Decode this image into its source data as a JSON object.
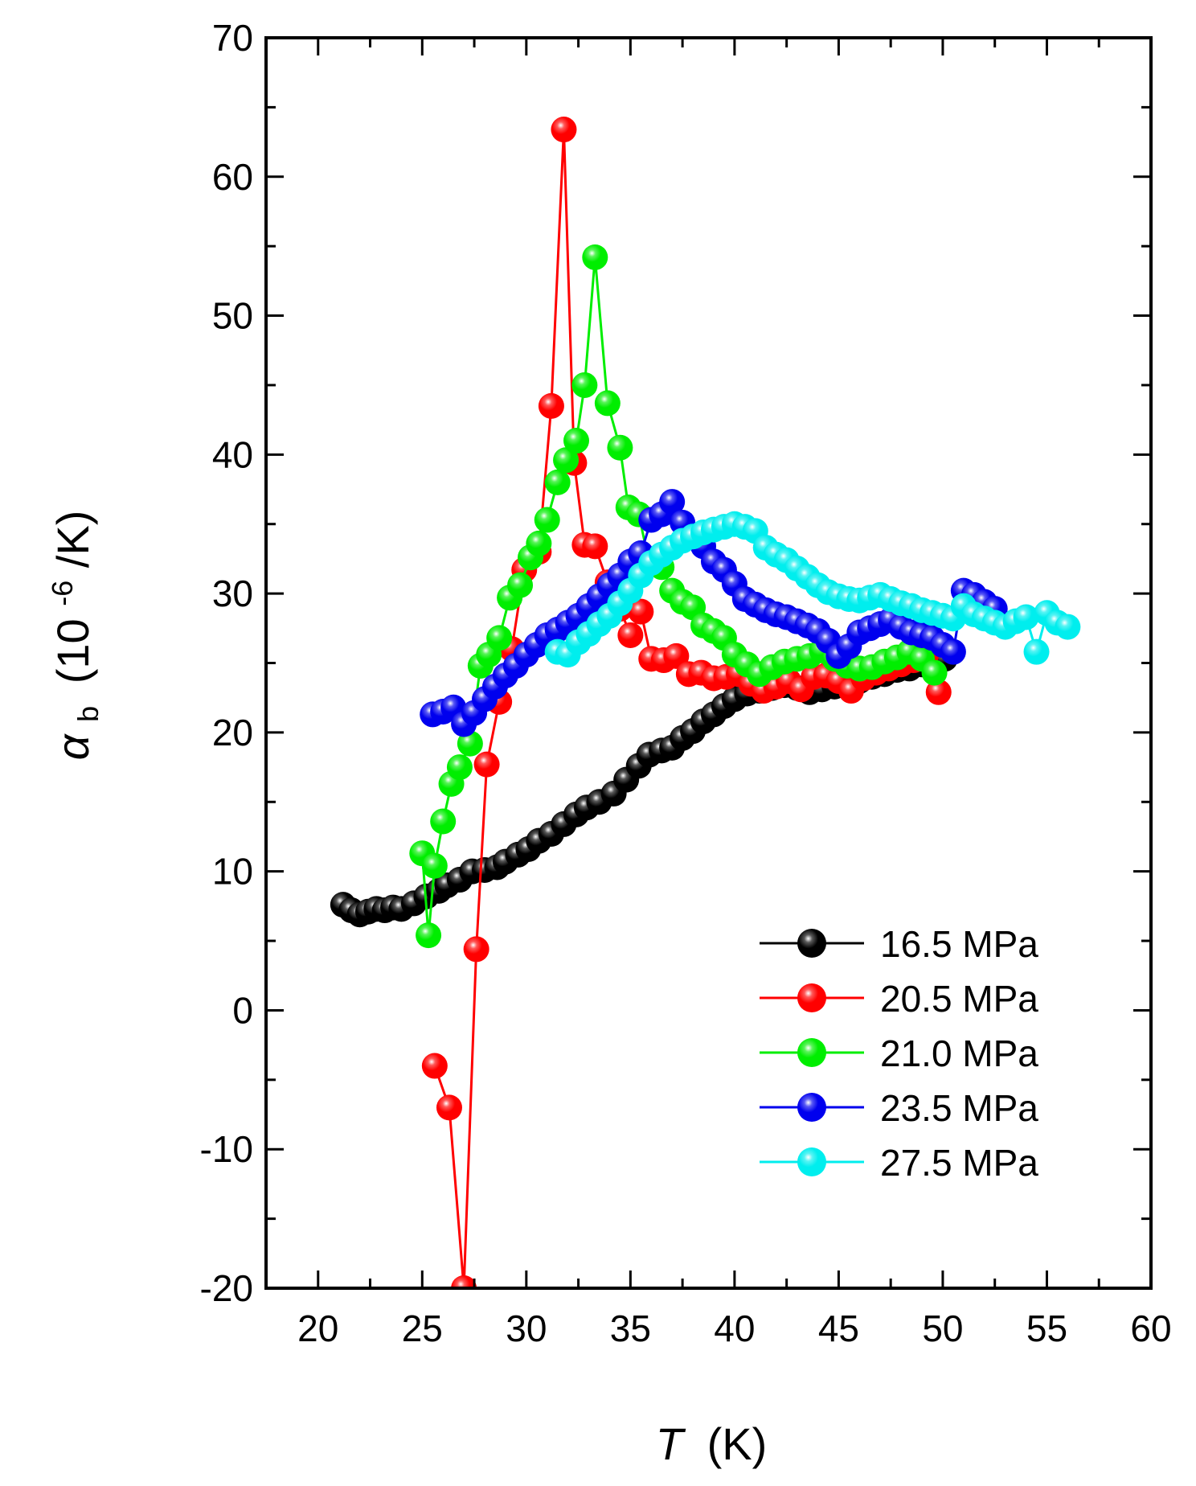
{
  "chart_data": {
    "type": "scatter",
    "xlabel": {
      "symbol": "T",
      "unit": "(K)"
    },
    "ylabel": {
      "symbol": "α",
      "subscript": "b",
      "unit_prefix": "(10",
      "unit_exponent": "-6",
      "unit_suffix": "/K)"
    },
    "xlim": [
      17.5,
      60
    ],
    "ylim": [
      -20,
      70
    ],
    "xticks": [
      20,
      25,
      30,
      35,
      40,
      45,
      50,
      55,
      60
    ],
    "yticks": [
      -20,
      -10,
      0,
      10,
      20,
      30,
      40,
      50,
      60,
      70
    ],
    "xtick_labels": [
      "20",
      "25",
      "30",
      "35",
      "40",
      "45",
      "50",
      "55",
      "60"
    ],
    "ytick_labels": [
      "-20",
      "-10",
      "0",
      "10",
      "20",
      "30",
      "40",
      "50",
      "60",
      "70"
    ],
    "legend_position": "bottom-right",
    "series": [
      {
        "name": "16.5 MPa",
        "color": "#000000",
        "x": [
          21.2,
          21.6,
          22.0,
          22.4,
          22.8,
          23.2,
          23.6,
          24.0,
          24.6,
          25.2,
          25.8,
          26.2,
          26.8,
          27.4,
          28.0,
          28.6,
          29.0,
          29.6,
          30.1,
          30.6,
          31.2,
          31.8,
          32.4,
          32.9,
          33.5,
          34.2,
          34.8,
          35.4,
          35.9,
          36.5,
          37.0,
          37.5,
          38.0,
          38.5,
          39.0,
          39.5,
          40.0,
          40.6,
          41.2,
          41.8,
          42.4,
          43.0,
          43.6,
          44.2,
          44.8,
          45.4,
          46.0,
          46.6,
          47.2,
          47.8,
          48.4,
          49.0,
          49.6,
          50.1
        ],
        "y": [
          7.6,
          7.2,
          6.9,
          7.1,
          7.3,
          7.2,
          7.4,
          7.3,
          7.7,
          8.2,
          8.6,
          9.0,
          9.4,
          10.0,
          10.1,
          10.3,
          10.7,
          11.2,
          11.6,
          12.2,
          12.7,
          13.4,
          14.1,
          14.6,
          15.0,
          15.6,
          16.6,
          17.6,
          18.4,
          18.7,
          18.9,
          19.6,
          20.1,
          20.8,
          21.3,
          21.9,
          22.4,
          22.8,
          23.0,
          23.2,
          23.4,
          23.2,
          22.9,
          23.1,
          23.3,
          23.4,
          23.7,
          24.0,
          24.2,
          24.5,
          24.6,
          24.9,
          25.1,
          25.3
        ]
      },
      {
        "name": "20.5 MPa",
        "color": "#ff0000",
        "x": [
          25.6,
          26.3,
          27.0,
          27.6,
          28.1,
          28.7,
          29.3,
          29.9,
          30.6,
          31.2,
          31.8,
          32.3,
          32.8,
          33.3,
          33.9,
          34.5,
          35.0,
          35.5,
          36.0,
          36.6,
          37.2,
          37.8,
          38.4,
          39.0,
          39.6,
          40.2,
          40.8,
          41.4,
          42.0,
          42.6,
          43.2,
          43.8,
          44.4,
          45.0,
          45.6,
          46.2,
          46.8,
          47.4,
          48.0,
          48.6,
          49.2,
          49.8
        ],
        "y": [
          -4.0,
          -7.0,
          -20.0,
          4.4,
          17.7,
          22.2,
          26.0,
          31.7,
          33.0,
          43.5,
          63.4,
          39.4,
          33.5,
          33.4,
          30.8,
          28.9,
          27.0,
          28.7,
          25.3,
          25.2,
          25.5,
          24.2,
          24.3,
          23.9,
          24.0,
          24.2,
          23.5,
          23.0,
          23.3,
          23.7,
          23.1,
          24.0,
          24.1,
          23.7,
          23.0,
          23.9,
          24.3,
          24.6,
          24.9,
          25.2,
          25.6,
          22.9
        ]
      },
      {
        "name": "21.0 MPa",
        "color": "#00ee00",
        "x": [
          25.0,
          25.3,
          25.6,
          26.0,
          26.4,
          26.8,
          27.3,
          27.8,
          28.2,
          28.7,
          29.2,
          29.7,
          30.2,
          30.6,
          31.0,
          31.5,
          31.9,
          32.4,
          32.8,
          33.3,
          33.9,
          34.5,
          34.9,
          35.4,
          35.9,
          36.5,
          37.0,
          37.5,
          38.0,
          38.5,
          39.0,
          39.5,
          40.0,
          40.6,
          41.2,
          41.8,
          42.4,
          43.0,
          43.6,
          44.2,
          44.8,
          45.4,
          46.0,
          46.6,
          47.2,
          47.8,
          48.4,
          49.0,
          49.6
        ],
        "y": [
          11.3,
          5.4,
          10.4,
          13.6,
          16.3,
          17.5,
          19.2,
          24.8,
          25.6,
          26.8,
          29.7,
          30.6,
          32.6,
          33.6,
          35.3,
          38.0,
          39.6,
          41.0,
          45.0,
          54.2,
          43.7,
          40.5,
          36.2,
          35.7,
          32.2,
          31.9,
          30.2,
          29.4,
          29.0,
          27.7,
          27.3,
          26.8,
          25.6,
          24.9,
          24.2,
          24.7,
          25.1,
          25.3,
          25.5,
          25.9,
          25.3,
          24.8,
          24.6,
          24.7,
          25.1,
          25.4,
          25.8,
          25.3,
          24.3
        ]
      },
      {
        "name": "23.5 MPa",
        "color": "#0000ee",
        "x": [
          25.5,
          26.0,
          26.5,
          27.0,
          27.5,
          28.0,
          28.5,
          29.0,
          29.5,
          30.0,
          30.5,
          31.0,
          31.5,
          32.0,
          32.5,
          33.0,
          33.5,
          34.0,
          34.5,
          35.0,
          35.5,
          36.0,
          36.5,
          37.0,
          37.5,
          38.0,
          38.5,
          39.0,
          39.5,
          40.0,
          40.5,
          41.0,
          41.5,
          42.0,
          42.5,
          43.0,
          43.5,
          44.0,
          44.5,
          45.0,
          45.5,
          46.0,
          46.5,
          47.0,
          47.5,
          48.0,
          48.5,
          49.0,
          49.5,
          50.0,
          50.5,
          51.0,
          51.5,
          52.0,
          52.5
        ],
        "y": [
          21.3,
          21.5,
          21.8,
          20.6,
          21.4,
          22.4,
          23.3,
          24.1,
          24.8,
          25.6,
          26.3,
          27.0,
          27.4,
          27.9,
          28.4,
          29.1,
          29.8,
          30.6,
          31.3,
          32.3,
          32.9,
          35.3,
          35.7,
          36.6,
          35.1,
          34.1,
          33.4,
          32.3,
          31.7,
          30.7,
          29.6,
          29.2,
          28.8,
          28.5,
          28.3,
          28.0,
          27.7,
          27.3,
          26.6,
          25.5,
          26.2,
          27.2,
          27.5,
          27.8,
          28.1,
          27.6,
          27.2,
          27.0,
          26.8,
          26.3,
          25.8,
          30.2,
          29.9,
          29.4,
          28.9
        ]
      },
      {
        "name": "27.5 MPa",
        "color": "#00eeee",
        "x": [
          31.5,
          32.0,
          32.5,
          33.0,
          33.5,
          34.0,
          34.5,
          35.0,
          35.5,
          36.0,
          36.5,
          37.0,
          37.5,
          38.0,
          38.5,
          39.0,
          39.5,
          40.0,
          40.5,
          41.0,
          41.5,
          42.0,
          42.5,
          43.0,
          43.5,
          44.0,
          44.5,
          45.0,
          45.5,
          46.0,
          46.5,
          47.0,
          47.5,
          48.0,
          48.5,
          49.0,
          49.5,
          50.0,
          50.5,
          51.0,
          51.5,
          52.0,
          52.5,
          53.0,
          53.5,
          54.0,
          54.5,
          55.0,
          55.5,
          56.0
        ],
        "y": [
          25.8,
          25.6,
          26.5,
          27.1,
          27.8,
          28.4,
          29.3,
          30.2,
          31.3,
          32.2,
          32.8,
          33.3,
          33.8,
          34.1,
          34.4,
          34.6,
          34.8,
          35.0,
          34.8,
          34.5,
          33.3,
          32.8,
          32.4,
          31.8,
          31.2,
          30.6,
          30.1,
          29.8,
          29.6,
          29.5,
          29.7,
          29.9,
          29.6,
          29.3,
          29.1,
          28.8,
          28.6,
          28.4,
          28.2,
          29.1,
          28.5,
          28.2,
          27.9,
          27.6,
          28.0,
          28.3,
          25.8,
          28.6,
          27.9,
          27.6
        ]
      }
    ]
  }
}
